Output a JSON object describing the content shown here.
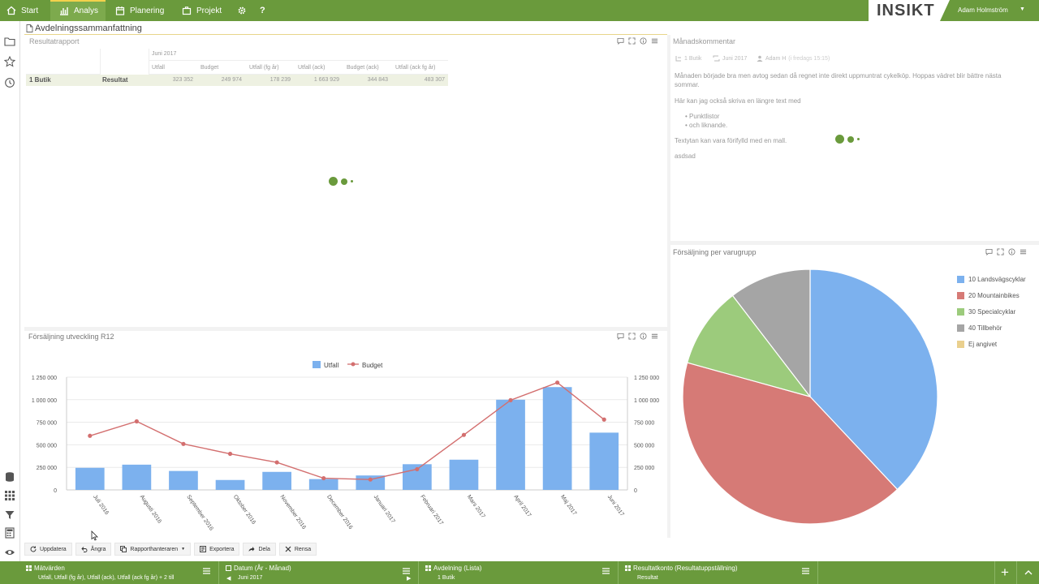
{
  "nav": {
    "items": [
      {
        "label": "Start",
        "icon": "home-icon"
      },
      {
        "label": "Analys",
        "icon": "bar-chart-icon"
      },
      {
        "label": "Planering",
        "icon": "calendar-icon"
      },
      {
        "label": "Projekt",
        "icon": "briefcase-icon"
      }
    ],
    "help": "?",
    "logo": "INSIKT",
    "user": "Adam Holmström"
  },
  "page_title": "Avdelningssammanfattning",
  "report": {
    "title": "Resultatrapport",
    "period": "Juni 2017",
    "columns": [
      "Utfall",
      "Budget",
      "Utfall (fg år)",
      "Utfall (ack)",
      "Budget (ack)",
      "Utfall (ack fg år)"
    ],
    "row": {
      "dimension": "1 Butik",
      "account": "Resultat",
      "values": [
        "323 352",
        "249 974",
        "178 239",
        "1 663 929",
        "344 843",
        "483 307"
      ]
    }
  },
  "comment": {
    "title": "Månadskommentar",
    "meta_unit": "1 Butik",
    "meta_period": "Juni 2017",
    "meta_author": "Adam H",
    "meta_time": "(i fredags 15:15)",
    "para1": "Månaden började bra men avtog sedan då regnet inte direkt uppmuntrat cykelköp. Hoppas vädret blir bättre nästa sommar.",
    "para2": "Här kan jag också skriva en längre text med",
    "bullets": [
      "Punktlistor",
      "och liknande."
    ],
    "para3": "Textytan kan vara förifylld med en mall.",
    "para4": "asdsad"
  },
  "chart_data": [
    {
      "type": "bar",
      "title": "Försäljning utveckling R12",
      "categories": [
        "Juli 2016",
        "Augusti 2016",
        "September 2016",
        "Oktober 2016",
        "November 2016",
        "December 2016",
        "Januari 2017",
        "Februari 2017",
        "Mars 2017",
        "April 2017",
        "Maj 2017",
        "Juni 2017"
      ],
      "series": [
        {
          "name": "Utfall",
          "kind": "bar",
          "color": "#7cb1ee",
          "values": [
            245000,
            280000,
            210000,
            110000,
            200000,
            120000,
            160000,
            285000,
            335000,
            1000000,
            1140000,
            635000
          ]
        },
        {
          "name": "Budget",
          "kind": "line",
          "color": "#d36f6f",
          "values": [
            600000,
            760000,
            510000,
            400000,
            305000,
            130000,
            115000,
            230000,
            610000,
            995000,
            1190000,
            780000
          ]
        }
      ],
      "y_ticks": [
        "0",
        "250 000",
        "500 000",
        "750 000",
        "1 000 000",
        "1 250 000"
      ],
      "ylim": [
        0,
        1250000
      ]
    },
    {
      "type": "pie",
      "title": "Försäljning per varugrupp",
      "labels": [
        "10 Landsvägscyklar",
        "20 Mountainbikes",
        "30 Specialcyklar",
        "40 Tillbehör",
        "Ej angivet"
      ],
      "values": [
        38.0,
        41.3,
        10.3,
        10.4,
        0.0
      ],
      "colors": [
        "#7cb1ee",
        "#d67a76",
        "#9ccb7c",
        "#a5a5a5",
        "#ead08e"
      ]
    }
  ],
  "toolbar": {
    "update": "Uppdatera",
    "undo": "Ångra",
    "reports": "Rapporthanteraren",
    "export": "Exportera",
    "share": "Dela",
    "clear": "Rensa"
  },
  "bottom": [
    {
      "title": "Mätvärden",
      "value": "Utfall, Utfall (fg år), Utfall (ack), Utfall (ack fg år) + 2 till"
    },
    {
      "title": "Datum (År - Månad)",
      "value": "Juni 2017"
    },
    {
      "title": "Avdelning (Lista)",
      "value": "1 Butik"
    },
    {
      "title": "Resultatkonto (Resultatuppställning)",
      "value": "Resultat"
    }
  ],
  "colors": {
    "brand_green": "#6a9a3c",
    "accent_yellow": "#f2d14c"
  }
}
